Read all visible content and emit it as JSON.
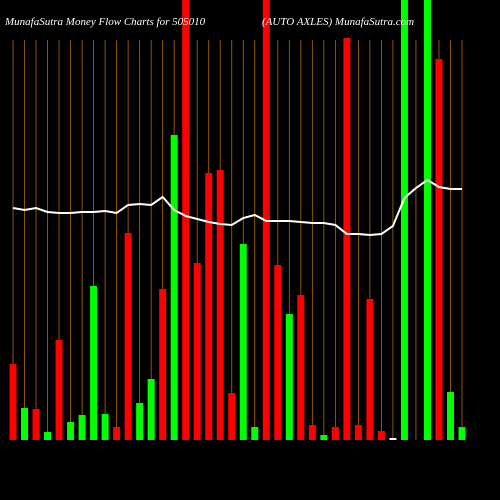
{
  "chart_data": {
    "type": "bar",
    "title": "MunafaSutra  Money Flow  Charts for 505010",
    "subtitle": "(AUTO AXLES) MunafaSutra.com",
    "categories": [
      null,
      null,
      null,
      null,
      null,
      null,
      null,
      null,
      null,
      null,
      null,
      null,
      null,
      null,
      null,
      null,
      null,
      null,
      null,
      null,
      null,
      null,
      null,
      null,
      null,
      null,
      null,
      null,
      null,
      null,
      null,
      null,
      null,
      null,
      null,
      null,
      null,
      null,
      null,
      null
    ],
    "series": [
      {
        "colors": [
          "#ff0000",
          "#00ff00",
          "#ff0000",
          "#00ff00",
          "#ff0000",
          "#00ff00",
          "#00ff00",
          "#00ff00",
          "#00ff00",
          "#ff0000",
          "#ff0000",
          "#00ff00",
          "#00ff00",
          "#ff0000",
          "#00ff00",
          "#ff0000",
          "#ff0000",
          "#ff0000",
          "#ff0000",
          "#ff0000",
          "#00ff00",
          "#00ff00",
          "#ff0000",
          "#ff0000",
          "#00ff00",
          "#ff0000",
          "#ff0000",
          "#00ff00",
          "#ff0000",
          "#ff0000",
          "#ff0000",
          "#ff0000",
          "#ff0000",
          "#ffffff",
          "#00ff00",
          "#00ff00",
          "#00ff00",
          "#ff0000",
          "#00ff00",
          "#00ff00"
        ],
        "values": [
          76,
          32,
          31,
          8,
          100,
          18,
          25,
          154,
          26,
          13,
          207,
          37,
          61,
          151,
          305,
          440,
          177,
          267,
          270,
          47,
          196,
          13,
          440,
          175,
          126,
          145,
          15,
          5,
          13,
          402,
          15,
          141,
          9,
          2,
          440,
          0,
          440,
          381,
          48,
          13
        ]
      },
      {
        "type": "line",
        "color": "#ffffff",
        "values": [
          232,
          230,
          232,
          228,
          227,
          227,
          228,
          228,
          229,
          227,
          235,
          236,
          235,
          243,
          230,
          224,
          221,
          218,
          216,
          215,
          222,
          225,
          219,
          219,
          219,
          218,
          217,
          217,
          215,
          206,
          206,
          205,
          206,
          214,
          242,
          252,
          260,
          253,
          251,
          251
        ]
      }
    ],
    "ylim": [
      0,
      440
    ],
    "grid": true
  }
}
